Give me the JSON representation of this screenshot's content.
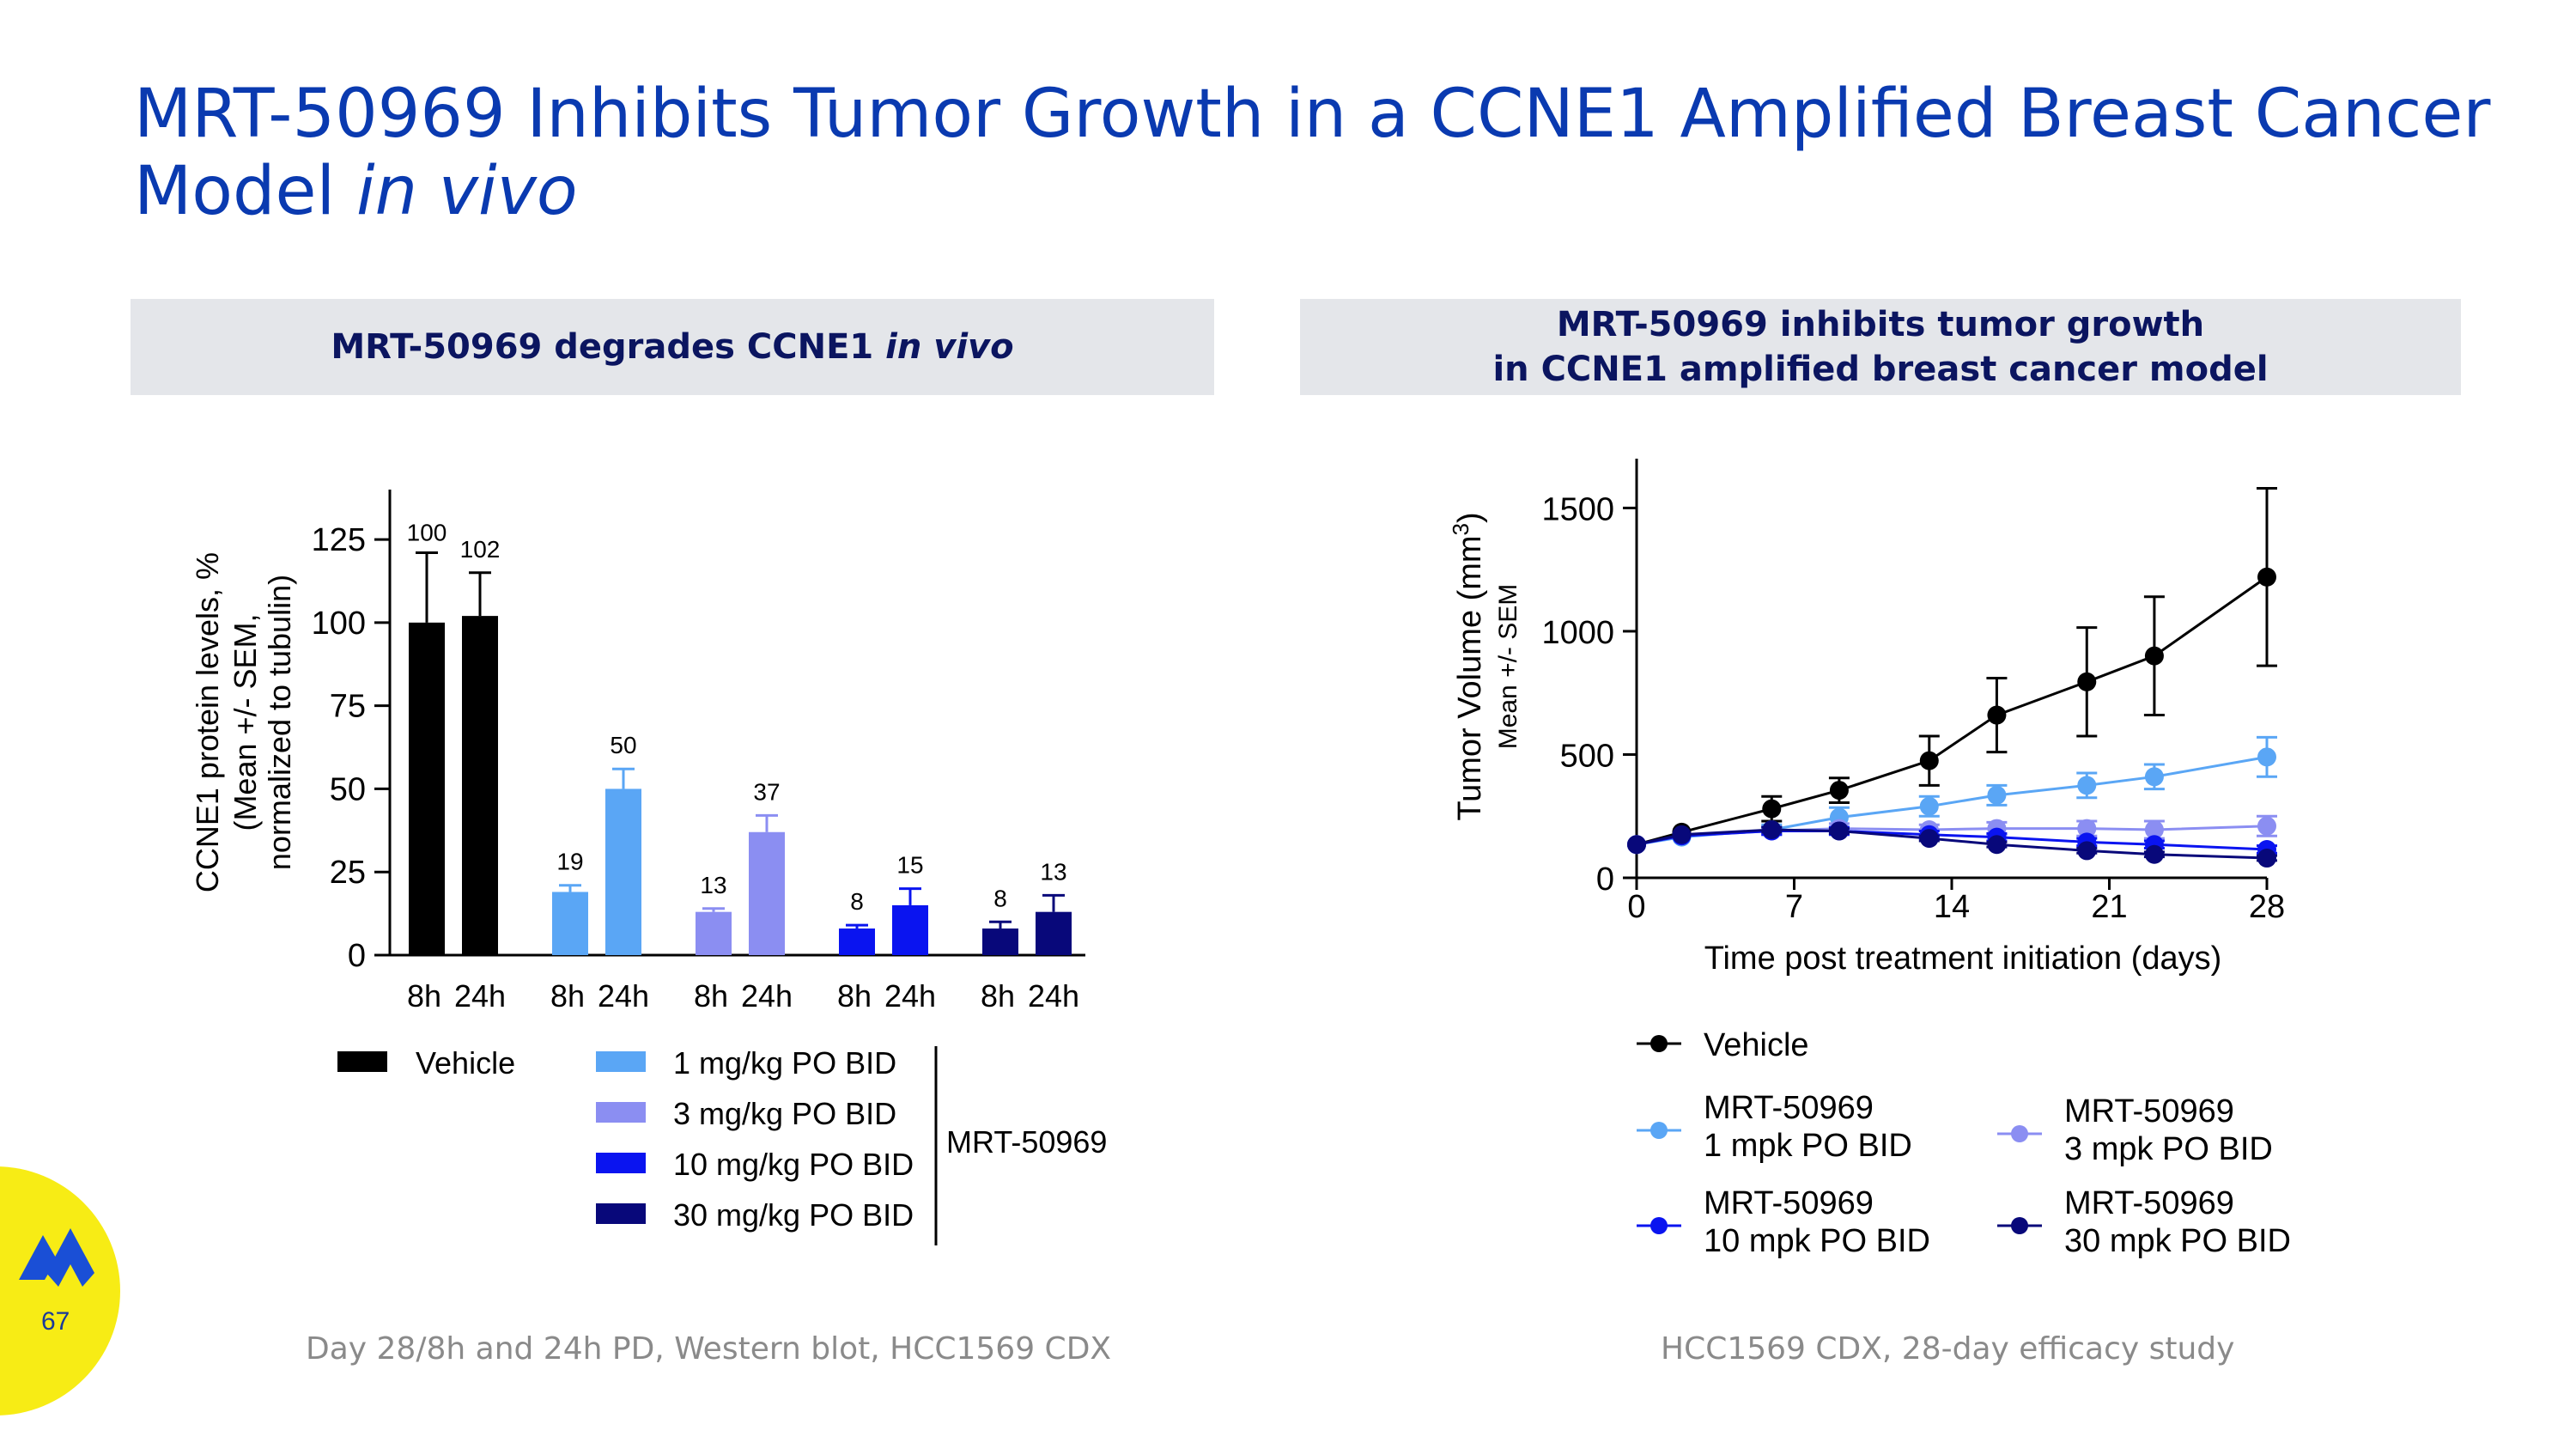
{
  "title": {
    "line1": "MRT-50969 Inhibits Tumor Growth in a CCNE1 Amplified Breast Cancer",
    "line2_plain": "Model ",
    "line2_italic": "in vivo"
  },
  "left_panel": {
    "heading_plain": "MRT-50969 degrades CCNE1 ",
    "heading_italic": "in vivo"
  },
  "right_panel": {
    "heading_line1": "MRT-50969 inhibits tumor growth",
    "heading_line2": "in CCNE1 amplified breast cancer model"
  },
  "footnotes": {
    "left": "Day 28/8h and 24h PD, Western blot, HCC1569 CDX",
    "right": "HCC1569 CDX, 28-day efficacy study"
  },
  "page_number": "67",
  "chart_data": [
    {
      "type": "bar",
      "ylabel_lines": [
        "CCNE1 protein levels, %",
        "(Mean +/- SEM,",
        "normalized to tubulin)"
      ],
      "ylim": [
        0,
        140
      ],
      "yticks": [
        0,
        25,
        50,
        75,
        100,
        125
      ],
      "groups": [
        {
          "name": "Vehicle",
          "color": "#000000",
          "bars": [
            {
              "label": "8h",
              "value": 100,
              "err": 21,
              "data_label": "100"
            },
            {
              "label": "24h",
              "value": 102,
              "err": 13,
              "data_label": "102"
            }
          ]
        },
        {
          "name": "1 mg/kg PO BID",
          "color": "#5aa6f5",
          "bars": [
            {
              "label": "8h",
              "value": 19,
              "err": 2,
              "data_label": "19"
            },
            {
              "label": "24h",
              "value": 50,
              "err": 6,
              "data_label": "50"
            }
          ]
        },
        {
          "name": "3 mg/kg PO BID",
          "color": "#8b8ef2",
          "bars": [
            {
              "label": "8h",
              "value": 13,
              "err": 1,
              "data_label": "13"
            },
            {
              "label": "24h",
              "value": 37,
              "err": 5,
              "data_label": "37"
            }
          ]
        },
        {
          "name": "10 mg/kg PO BID",
          "color": "#0a14f0",
          "bars": [
            {
              "label": "8h",
              "value": 8,
              "err": 1,
              "data_label": "8"
            },
            {
              "label": "24h",
              "value": 15,
              "err": 5,
              "data_label": "15"
            }
          ]
        },
        {
          "name": "30 mg/kg PO BID",
          "color": "#08087a",
          "bars": [
            {
              "label": "8h",
              "value": 8,
              "err": 2,
              "data_label": "8"
            },
            {
              "label": "24h",
              "value": 13,
              "err": 5,
              "data_label": "13"
            }
          ]
        }
      ],
      "legend_bracket_label": "MRT-50969"
    },
    {
      "type": "line",
      "ylabel": "Tumor Volume (mm",
      "ylabel_sup": "3",
      "ylabel_close": ")",
      "ylabel_sub": "Mean +/- SEM",
      "xlabel": "Time post treatment initiation (days)",
      "xlim": [
        0,
        28
      ],
      "ylim": [
        0,
        1700
      ],
      "xticks": [
        0,
        7,
        14,
        21,
        28
      ],
      "yticks": [
        0,
        500,
        1000,
        1500
      ],
      "series": [
        {
          "name": "Vehicle",
          "legend_lines": [
            "Vehicle"
          ],
          "color": "#000000",
          "points": [
            [
              0,
              135,
              0
            ],
            [
              2,
              185,
              0
            ],
            [
              6,
              280,
              50
            ],
            [
              9,
              355,
              50
            ],
            [
              13,
              475,
              100
            ],
            [
              16,
              660,
              150
            ],
            [
              20,
              795,
              220
            ],
            [
              23,
              900,
              240
            ],
            [
              28,
              1220,
              360
            ]
          ]
        },
        {
          "name": "MRT-50969 1 mpk PO BID",
          "legend_lines": [
            "MRT-50969",
            "1 mpk PO BID"
          ],
          "color": "#5aa6f5",
          "points": [
            [
              0,
              135,
              0
            ],
            [
              2,
              165,
              0
            ],
            [
              6,
              195,
              20
            ],
            [
              9,
              245,
              40
            ],
            [
              13,
              290,
              40
            ],
            [
              16,
              335,
              40
            ],
            [
              20,
              375,
              50
            ],
            [
              23,
              410,
              50
            ],
            [
              28,
              490,
              80
            ]
          ]
        },
        {
          "name": "MRT-50969 3 mpk PO BID",
          "legend_lines": [
            "MRT-50969",
            "3 mpk PO BID"
          ],
          "color": "#8b8ef2",
          "points": [
            [
              0,
              135,
              0
            ],
            [
              2,
              170,
              0
            ],
            [
              6,
              190,
              15
            ],
            [
              9,
              200,
              20
            ],
            [
              13,
              195,
              20
            ],
            [
              16,
              200,
              25
            ],
            [
              20,
              200,
              30
            ],
            [
              23,
              195,
              35
            ],
            [
              28,
              210,
              40
            ]
          ]
        },
        {
          "name": "MRT-50969 10 mpk PO BID",
          "legend_lines": [
            "MRT-50969",
            "10 mpk PO BID"
          ],
          "color": "#0a14f0",
          "points": [
            [
              0,
              135,
              0
            ],
            [
              2,
              170,
              0
            ],
            [
              6,
              190,
              15
            ],
            [
              9,
              190,
              15
            ],
            [
              13,
              175,
              15
            ],
            [
              16,
              165,
              15
            ],
            [
              20,
              145,
              15
            ],
            [
              23,
              135,
              15
            ],
            [
              28,
              115,
              15
            ]
          ]
        },
        {
          "name": "MRT-50969 30 mpk PO BID",
          "legend_lines": [
            "MRT-50969",
            "30 mpk PO BID"
          ],
          "color": "#08087a",
          "points": [
            [
              0,
              135,
              0
            ],
            [
              2,
              175,
              0
            ],
            [
              6,
              195,
              10
            ],
            [
              9,
              190,
              10
            ],
            [
              13,
              160,
              10
            ],
            [
              16,
              135,
              10
            ],
            [
              20,
              110,
              10
            ],
            [
              23,
              95,
              10
            ],
            [
              28,
              80,
              10
            ]
          ]
        }
      ]
    }
  ]
}
